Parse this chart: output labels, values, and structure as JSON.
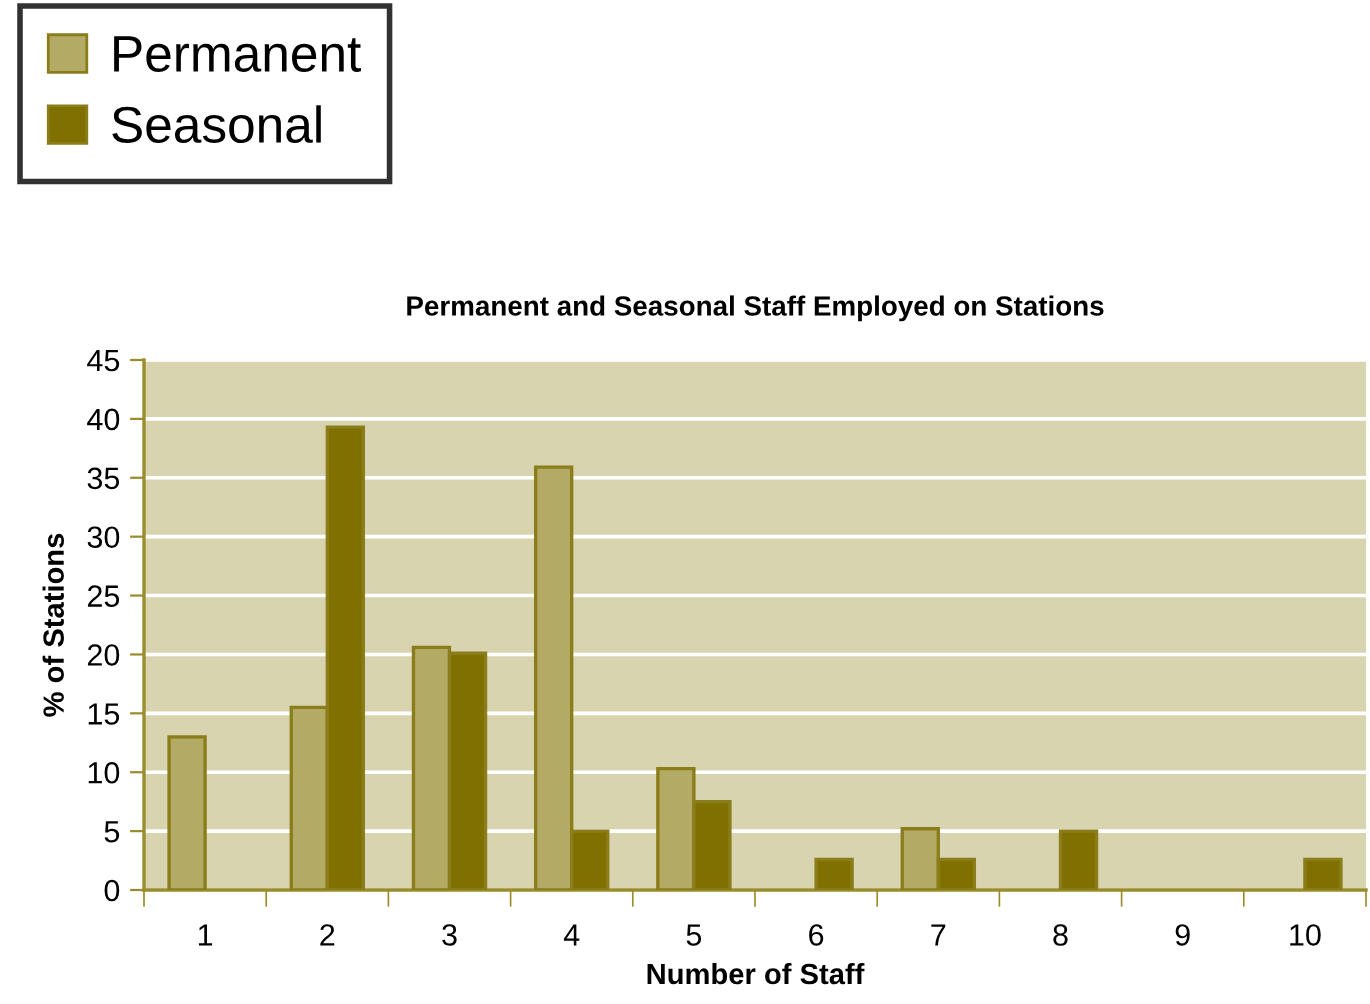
{
  "chart_data": {
    "type": "bar",
    "title": "Permanent and Seasonal Staff Employed on Stations",
    "xlabel": "Number of Staff",
    "ylabel": "% of Stations",
    "categories": [
      "1",
      "2",
      "3",
      "4",
      "5",
      "6",
      "7",
      "8",
      "9",
      "10"
    ],
    "series": [
      {
        "name": "Permanent",
        "color": "#b3aa66",
        "values": [
          13,
          15.5,
          20.6,
          35.9,
          10.3,
          null,
          5.2,
          null,
          null,
          null
        ]
      },
      {
        "name": "Seasonal",
        "color": "#7f7000",
        "values": [
          null,
          39.3,
          20.1,
          5,
          7.5,
          2.6,
          2.6,
          5,
          null,
          2.6
        ]
      }
    ],
    "ylim": [
      0,
      45
    ],
    "yticks": [
      0,
      5,
      10,
      15,
      20,
      25,
      30,
      35,
      40,
      45
    ],
    "grid": "y",
    "legend": "top left"
  }
}
